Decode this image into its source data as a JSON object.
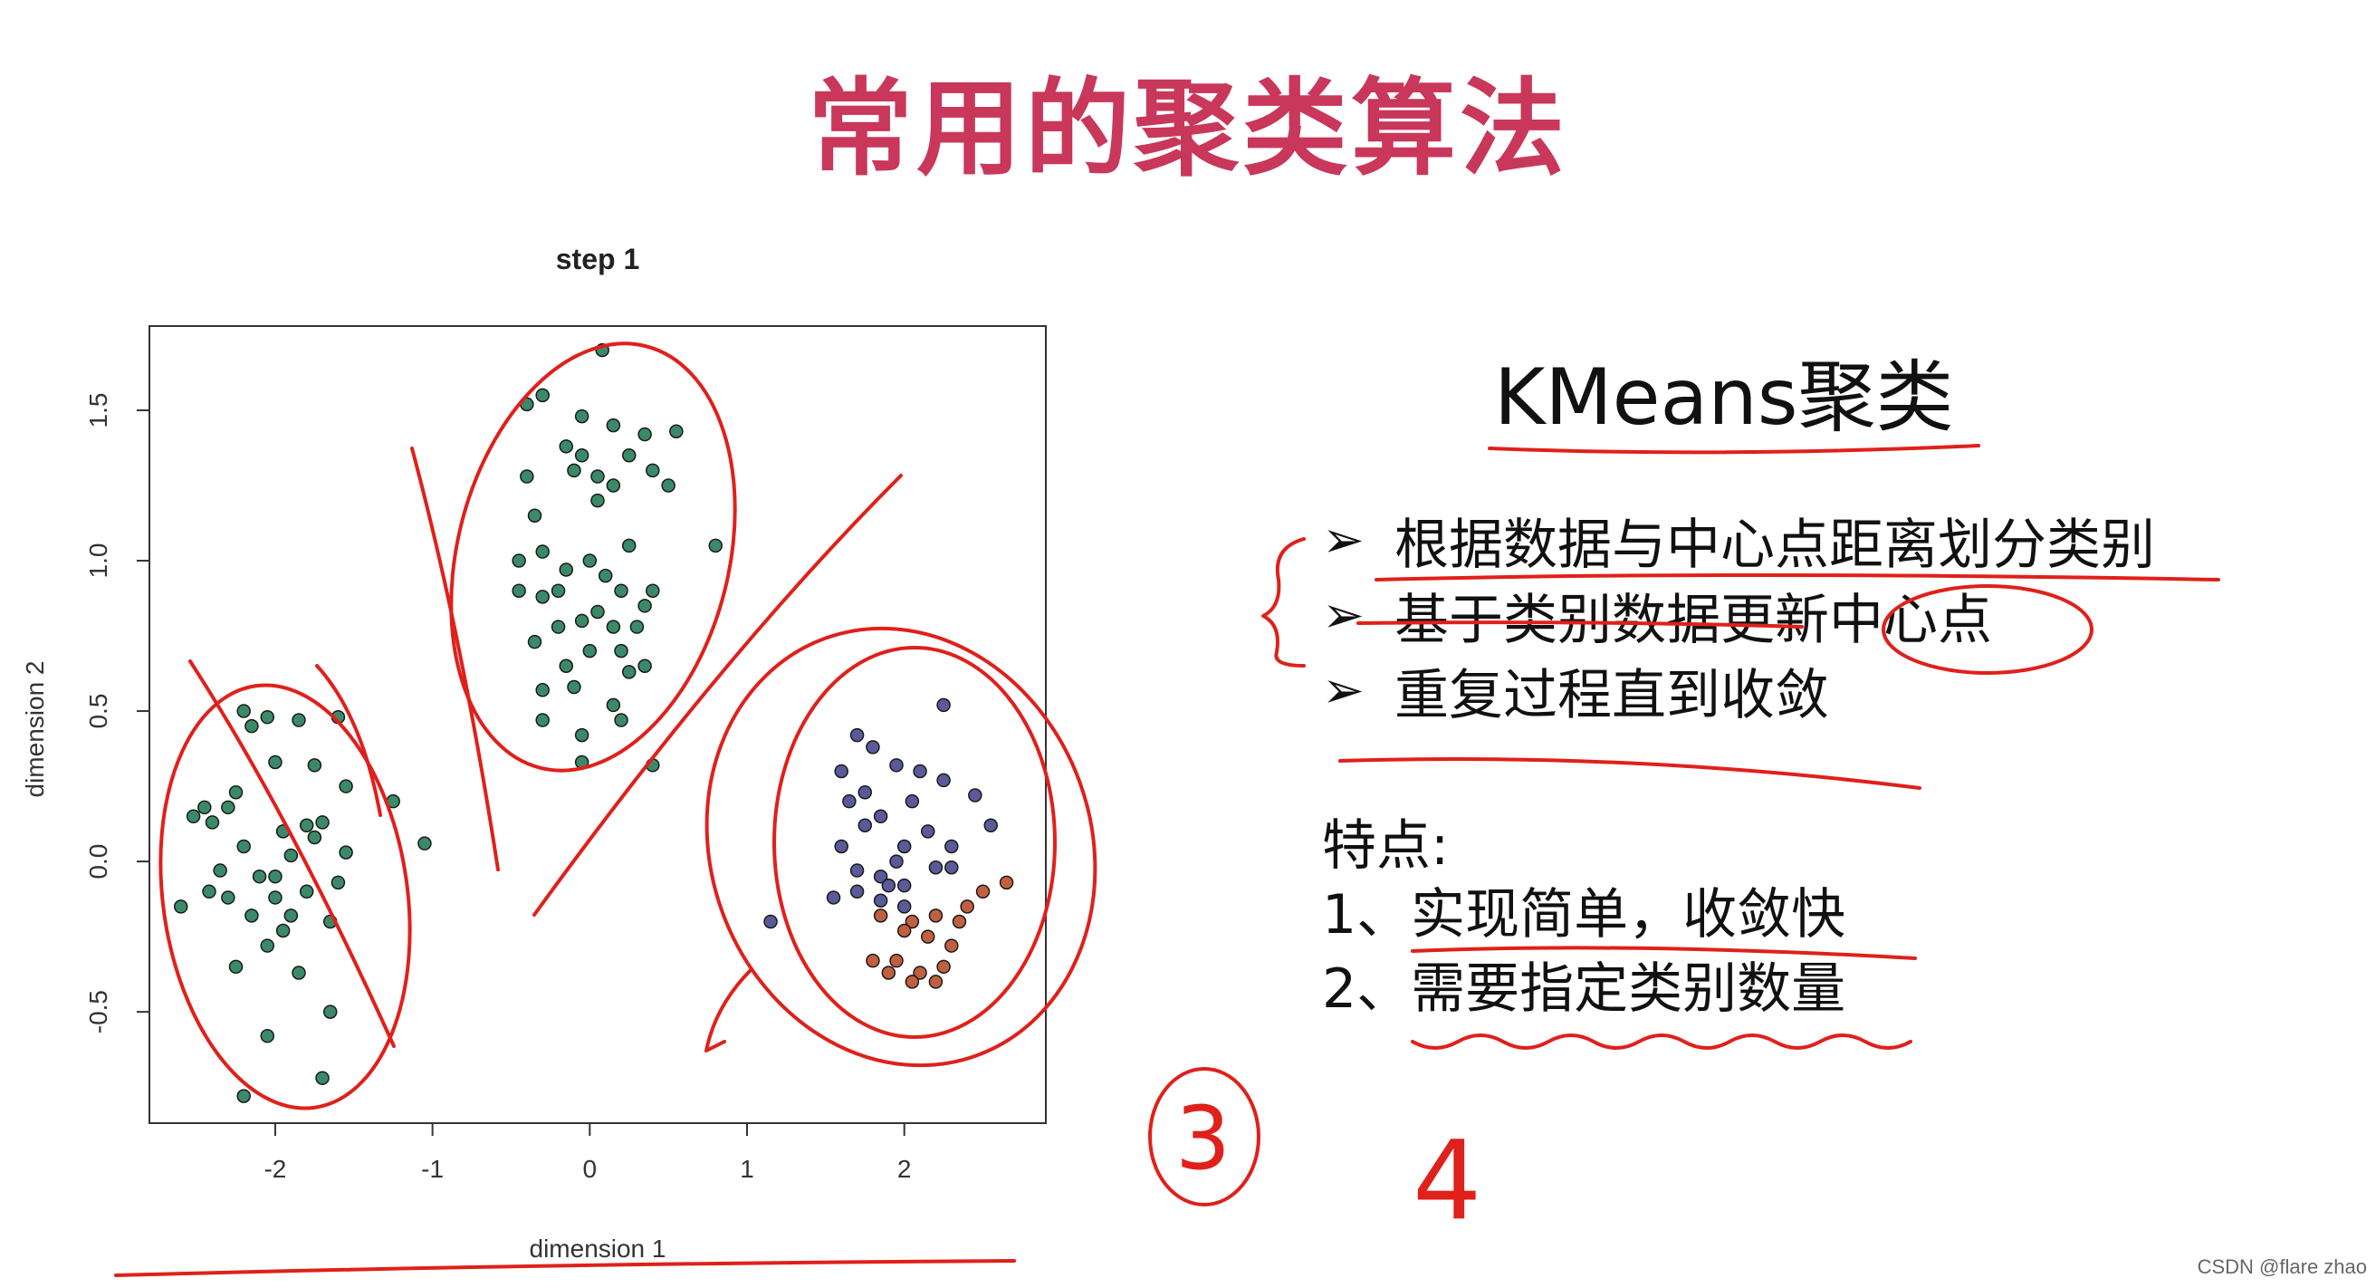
{
  "slide": {
    "title": "常用的聚类算法",
    "right": {
      "heading": "KMeans聚类",
      "bullets": [
        "根据数据与中心点距离划分类别",
        "基于类别数据更新中心点",
        "重复过程直到收敛"
      ],
      "features_title": "特点:",
      "features": [
        "1、实现简单，收敛快",
        "2、需要指定类别数量"
      ],
      "annotations": [
        "3",
        "4"
      ]
    },
    "watermark": "CSDN @flare zhao"
  },
  "chart_data": {
    "type": "scatter",
    "title": "step 1",
    "xlabel": "dimension 1",
    "ylabel": "dimension 2",
    "xlim": [
      -2.8,
      2.9
    ],
    "ylim": [
      -0.87,
      1.78
    ],
    "xticks": [
      "-2",
      "-1",
      "0",
      "1",
      "2"
    ],
    "yticks": [
      "-0.5",
      "0.0",
      "0.5",
      "1.0",
      "1.5"
    ],
    "series": [
      {
        "color": "#3a8a6a",
        "points": [
          [
            -2.2,
            0.5
          ],
          [
            -2.05,
            0.48
          ],
          [
            -1.85,
            0.47
          ],
          [
            -1.6,
            0.48
          ],
          [
            -2.15,
            0.45
          ],
          [
            -2.0,
            0.33
          ],
          [
            -1.75,
            0.32
          ],
          [
            -1.55,
            0.25
          ],
          [
            -2.25,
            0.23
          ],
          [
            -2.45,
            0.18
          ],
          [
            -2.3,
            0.18
          ],
          [
            -2.52,
            0.15
          ],
          [
            -1.7,
            0.13
          ],
          [
            -2.4,
            0.13
          ],
          [
            -1.8,
            0.12
          ],
          [
            -1.95,
            0.1
          ],
          [
            -1.75,
            0.08
          ],
          [
            -1.55,
            0.03
          ],
          [
            -2.2,
            0.05
          ],
          [
            -1.9,
            0.02
          ],
          [
            -1.6,
            -0.07
          ],
          [
            -2.0,
            -0.05
          ],
          [
            -2.1,
            -0.05
          ],
          [
            -2.35,
            -0.03
          ],
          [
            -1.8,
            -0.1
          ],
          [
            -2.6,
            -0.15
          ],
          [
            -2.3,
            -0.12
          ],
          [
            -2.0,
            -0.12
          ],
          [
            -1.9,
            -0.18
          ],
          [
            -2.15,
            -0.18
          ],
          [
            -2.42,
            -0.1
          ],
          [
            -1.95,
            -0.23
          ],
          [
            -2.05,
            -0.28
          ],
          [
            -1.65,
            -0.2
          ],
          [
            -2.25,
            -0.35
          ],
          [
            -1.85,
            -0.37
          ],
          [
            -1.65,
            -0.5
          ],
          [
            -2.05,
            -0.58
          ],
          [
            -1.7,
            -0.72
          ],
          [
            -2.2,
            -0.78
          ],
          [
            -1.25,
            0.2
          ],
          [
            -1.05,
            0.06
          ],
          [
            0.08,
            1.7
          ],
          [
            -0.3,
            1.55
          ],
          [
            -0.4,
            1.52
          ],
          [
            -0.05,
            1.48
          ],
          [
            0.15,
            1.45
          ],
          [
            0.35,
            1.42
          ],
          [
            -0.15,
            1.38
          ],
          [
            0.55,
            1.43
          ],
          [
            -0.05,
            1.35
          ],
          [
            0.25,
            1.35
          ],
          [
            -0.1,
            1.3
          ],
          [
            0.05,
            1.28
          ],
          [
            0.4,
            1.3
          ],
          [
            -0.4,
            1.28
          ],
          [
            0.15,
            1.25
          ],
          [
            0.5,
            1.25
          ],
          [
            -0.35,
            1.15
          ],
          [
            0.05,
            1.2
          ],
          [
            0.25,
            1.05
          ],
          [
            -0.3,
            1.03
          ],
          [
            0.0,
            1.0
          ],
          [
            -0.15,
            0.97
          ],
          [
            0.1,
            0.95
          ],
          [
            -0.45,
            0.9
          ],
          [
            -0.2,
            0.9
          ],
          [
            0.2,
            0.9
          ],
          [
            0.4,
            0.9
          ],
          [
            -0.3,
            0.88
          ],
          [
            0.05,
            0.83
          ],
          [
            -0.05,
            0.8
          ],
          [
            0.35,
            0.85
          ],
          [
            0.15,
            0.78
          ],
          [
            -0.2,
            0.78
          ],
          [
            0.3,
            0.78
          ],
          [
            -0.35,
            0.73
          ],
          [
            0.0,
            0.7
          ],
          [
            0.2,
            0.7
          ],
          [
            0.35,
            0.65
          ],
          [
            -0.15,
            0.65
          ],
          [
            0.25,
            0.63
          ],
          [
            -0.3,
            0.57
          ],
          [
            0.15,
            0.52
          ],
          [
            -0.1,
            0.58
          ],
          [
            -0.05,
            0.42
          ],
          [
            0.2,
            0.47
          ],
          [
            -0.3,
            0.47
          ],
          [
            -0.05,
            0.33
          ],
          [
            0.4,
            0.32
          ],
          [
            0.8,
            1.05
          ],
          [
            -0.45,
            1.0
          ]
        ]
      },
      {
        "color": "#5a5a9a",
        "points": [
          [
            2.25,
            0.52
          ],
          [
            1.7,
            0.42
          ],
          [
            1.8,
            0.38
          ],
          [
            1.6,
            0.3
          ],
          [
            1.95,
            0.32
          ],
          [
            2.1,
            0.3
          ],
          [
            1.75,
            0.23
          ],
          [
            1.65,
            0.2
          ],
          [
            2.25,
            0.27
          ],
          [
            2.05,
            0.2
          ],
          [
            2.45,
            0.22
          ],
          [
            1.85,
            0.15
          ],
          [
            2.15,
            0.1
          ],
          [
            1.75,
            0.12
          ],
          [
            2.0,
            0.05
          ],
          [
            1.6,
            0.05
          ],
          [
            2.3,
            0.05
          ],
          [
            2.55,
            0.12
          ],
          [
            1.95,
            0.0
          ],
          [
            2.2,
            -0.02
          ],
          [
            1.7,
            -0.03
          ],
          [
            1.85,
            -0.05
          ],
          [
            1.9,
            -0.08
          ],
          [
            2.0,
            -0.08
          ],
          [
            1.7,
            -0.1
          ],
          [
            1.55,
            -0.12
          ],
          [
            1.15,
            -0.2
          ],
          [
            2.3,
            -0.02
          ],
          [
            2.0,
            -0.15
          ],
          [
            1.85,
            -0.13
          ]
        ]
      },
      {
        "color": "#c06040",
        "points": [
          [
            2.65,
            -0.07
          ],
          [
            2.5,
            -0.1
          ],
          [
            2.4,
            -0.15
          ],
          [
            2.35,
            -0.2
          ],
          [
            2.05,
            -0.2
          ],
          [
            2.2,
            -0.18
          ],
          [
            2.0,
            -0.23
          ],
          [
            1.85,
            -0.18
          ],
          [
            2.15,
            -0.25
          ],
          [
            2.3,
            -0.28
          ],
          [
            1.95,
            -0.33
          ],
          [
            1.8,
            -0.33
          ],
          [
            2.1,
            -0.37
          ],
          [
            2.25,
            -0.35
          ],
          [
            2.2,
            -0.4
          ],
          [
            2.05,
            -0.4
          ],
          [
            1.9,
            -0.37
          ]
        ]
      }
    ]
  }
}
